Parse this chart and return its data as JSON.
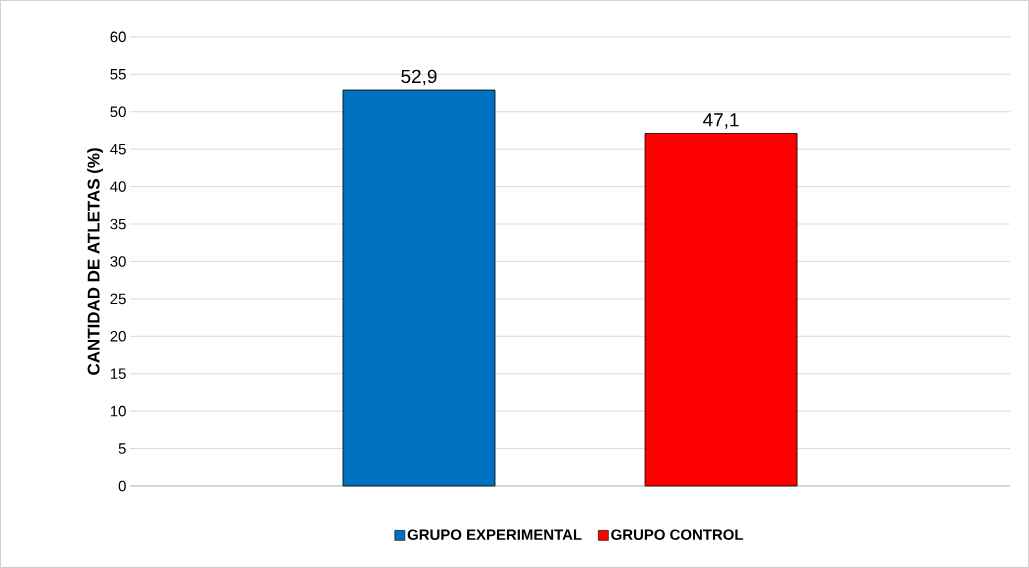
{
  "chart_data": {
    "type": "bar",
    "ylabel": "CANTIDAD DE ATLETAS (%)",
    "categories": [
      null
    ],
    "series": [
      {
        "name": "GRUPO EXPERIMENTAL",
        "color": "#0070c0",
        "values": [
          52.9
        ],
        "value_labels": [
          "52,9"
        ]
      },
      {
        "name": "GRUPO CONTROL",
        "color": "#ff0000",
        "values": [
          47.1
        ],
        "value_labels": [
          "47,1"
        ]
      }
    ],
    "ylim": [
      0,
      60
    ],
    "yticks": [
      0,
      5,
      10,
      15,
      20,
      25,
      30,
      35,
      40,
      45,
      50,
      55,
      60
    ],
    "grid": "y",
    "legend": "bottom"
  }
}
